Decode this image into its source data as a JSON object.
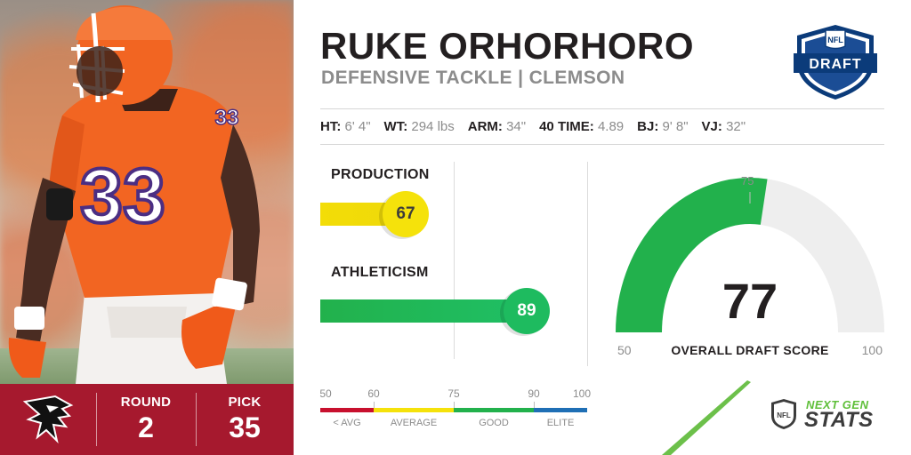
{
  "player": {
    "name": "RUKE ORHORHORO",
    "position_school": "DEFENSIVE TACKLE | CLEMSON",
    "jersey": "33"
  },
  "draft_logo": {
    "top": "NFL",
    "text": "DRAFT"
  },
  "measurables": [
    {
      "key": "HT:",
      "value": "6' 4\""
    },
    {
      "key": "WT:",
      "value": "294 lbs"
    },
    {
      "key": "ARM:",
      "value": "34\""
    },
    {
      "key": "40 TIME:",
      "value": "4.89"
    },
    {
      "key": "BJ:",
      "value": "9' 8\""
    },
    {
      "key": "VJ:",
      "value": "32\""
    }
  ],
  "scores": {
    "production": {
      "label": "PRODUCTION",
      "value": "67",
      "color": "#f5e20b"
    },
    "athleticism": {
      "label": "ATHLETICISM",
      "value": "89",
      "color": "#1ebb5f"
    }
  },
  "scale": {
    "ticks": [
      "50",
      "60",
      "75",
      "90",
      "100"
    ],
    "categories": [
      "< AVG",
      "AVERAGE",
      "GOOD",
      "ELITE"
    ],
    "colors": [
      "#c8102e",
      "#f5e20b",
      "#22b14c",
      "#1f6fb5"
    ]
  },
  "gauge": {
    "score": "77",
    "title": "OVERALL DRAFT SCORE",
    "min": "50",
    "max": "100",
    "marker": "75",
    "fill_fraction": 0.54,
    "color": "#22b14c"
  },
  "team": {
    "name_icon": "falcon-logo-icon",
    "round_label": "ROUND",
    "round": "2",
    "pick_label": "PICK",
    "pick": "35",
    "color": "#a6192e"
  },
  "ngs": {
    "line1": "NEXT GEN",
    "line2": "STATS",
    "shield": "NFL"
  }
}
